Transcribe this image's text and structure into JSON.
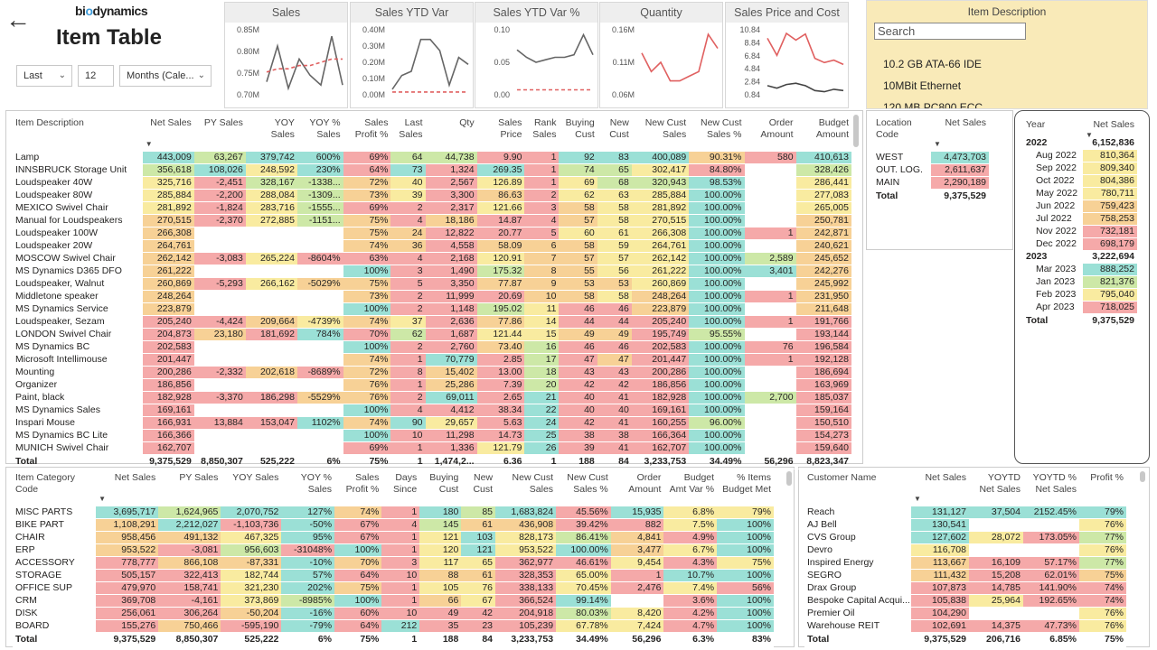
{
  "header": {
    "logo_pre": "bi",
    "logo_o": "o",
    "logo_post": "dynamics",
    "title": "Item Table",
    "filter_period": "Last",
    "filter_count": "12",
    "filter_unit": "Months (Cale..."
  },
  "kpi_cards": [
    {
      "title": "Sales",
      "yticks": [
        "0.85M",
        "0.80M",
        "0.75M",
        "0.70M"
      ]
    },
    {
      "title": "Sales YTD Var",
      "yticks": [
        "0.40M",
        "0.30M",
        "0.20M",
        "0.10M",
        "0.00M"
      ]
    },
    {
      "title": "Sales YTD Var %",
      "yticks": [
        "0.10",
        "0.05",
        "0.00"
      ]
    },
    {
      "title": "Quantity",
      "yticks": [
        "0.16M",
        "0.11M",
        "0.06M"
      ]
    },
    {
      "title": "Sales Price and Cost",
      "yticks": [
        "10.84",
        "8.84",
        "6.84",
        "4.84",
        "2.84",
        "0.84"
      ]
    }
  ],
  "item_description_slicer": {
    "title": "Item Description",
    "search_placeholder": "Search",
    "items": [
      "10.2 GB ATA-66 IDE",
      "10MBit Ethernet",
      "120 MB PC800 ECC"
    ]
  },
  "item_table": {
    "headers": [
      "Item Description",
      "Net Sales",
      "PY Sales",
      "YOY Sales",
      "YOY % Sales",
      "Sales Profit %",
      "Last Sales",
      "Qty",
      "Sales Price",
      "Rank Sales",
      "Buying Cust",
      "New Cust",
      "New Cust Sales",
      "New Cust Sales %",
      "Order Amount",
      "Budget Amount"
    ],
    "rows": [
      [
        "Lamp",
        "443,009",
        "63,267",
        "379,742",
        "600%",
        "69%",
        "64",
        "44,738",
        "9.90",
        "1",
        "92",
        "83",
        "400,089",
        "90.31%",
        "580",
        "410,613"
      ],
      [
        "INNSBRUCK Storage Unit",
        "356,618",
        "108,026",
        "248,592",
        "230%",
        "64%",
        "73",
        "1,324",
        "269.35",
        "1",
        "74",
        "65",
        "302,417",
        "84.80%",
        "",
        "328,426"
      ],
      [
        "Loudspeaker 40W",
        "325,716",
        "-2,451",
        "328,167",
        "-1338...",
        "72%",
        "40",
        "2,567",
        "126.89",
        "1",
        "69",
        "68",
        "320,943",
        "98.53%",
        "",
        "286,441"
      ],
      [
        "Loudspeaker 80W",
        "285,884",
        "-2,200",
        "288,084",
        "-1309...",
        "73%",
        "39",
        "3,300",
        "86.63",
        "2",
        "62",
        "63",
        "285,884",
        "100.00%",
        "",
        "277,083"
      ],
      [
        "MEXICO Swivel Chair",
        "281,892",
        "-1,824",
        "283,716",
        "-1555...",
        "69%",
        "2",
        "2,317",
        "121.66",
        "3",
        "58",
        "58",
        "281,892",
        "100.00%",
        "",
        "265,005"
      ],
      [
        "Manual for Loudspeakers",
        "270,515",
        "-2,370",
        "272,885",
        "-1151...",
        "75%",
        "4",
        "18,186",
        "14.87",
        "4",
        "57",
        "58",
        "270,515",
        "100.00%",
        "",
        "250,781"
      ],
      [
        "Loudspeaker 100W",
        "266,308",
        "",
        "",
        "",
        "75%",
        "24",
        "12,822",
        "20.77",
        "5",
        "60",
        "61",
        "266,308",
        "100.00%",
        "1",
        "242,871"
      ],
      [
        "Loudspeaker 20W",
        "264,761",
        "",
        "",
        "",
        "74%",
        "36",
        "4,558",
        "58.09",
        "6",
        "58",
        "59",
        "264,761",
        "100.00%",
        "",
        "240,621"
      ],
      [
        "MOSCOW Swivel Chair",
        "262,142",
        "-3,083",
        "265,224",
        "-8604%",
        "63%",
        "4",
        "2,168",
        "120.91",
        "7",
        "57",
        "57",
        "262,142",
        "100.00%",
        "2,589",
        "245,652"
      ],
      [
        "MS Dynamics D365 DFO",
        "261,222",
        "",
        "",
        "",
        "100%",
        "3",
        "1,490",
        "175.32",
        "8",
        "55",
        "56",
        "261,222",
        "100.00%",
        "3,401",
        "242,276"
      ],
      [
        "Loudspeaker, Walnut",
        "260,869",
        "-5,293",
        "266,162",
        "-5029%",
        "75%",
        "5",
        "3,350",
        "77.87",
        "9",
        "53",
        "53",
        "260,869",
        "100.00%",
        "",
        "245,992"
      ],
      [
        "Middletone speaker",
        "248,264",
        "",
        "",
        "",
        "73%",
        "2",
        "11,999",
        "20.69",
        "10",
        "58",
        "58",
        "248,264",
        "100.00%",
        "1",
        "231,950"
      ],
      [
        "MS Dynamics Service",
        "223,879",
        "",
        "",
        "",
        "100%",
        "2",
        "1,148",
        "195.02",
        "11",
        "46",
        "46",
        "223,879",
        "100.00%",
        "",
        "211,648"
      ],
      [
        "Loudspeaker, Sezam",
        "205,240",
        "-4,424",
        "209,664",
        "-4739%",
        "74%",
        "37",
        "2,636",
        "77.86",
        "14",
        "44",
        "44",
        "205,240",
        "100.00%",
        "1",
        "191,766"
      ],
      [
        "LONDON Swivel Chair",
        "204,873",
        "23,180",
        "181,692",
        "784%",
        "70%",
        "62",
        "1,687",
        "121.44",
        "15",
        "49",
        "49",
        "195,749",
        "95.55%",
        "",
        "193,144"
      ],
      [
        "MS Dynamics BC",
        "202,583",
        "",
        "",
        "",
        "100%",
        "2",
        "2,760",
        "73.40",
        "16",
        "46",
        "46",
        "202,583",
        "100.00%",
        "76",
        "196,584"
      ],
      [
        "Microsoft Intellimouse",
        "201,447",
        "",
        "",
        "",
        "74%",
        "1",
        "70,779",
        "2.85",
        "17",
        "47",
        "47",
        "201,447",
        "100.00%",
        "1",
        "192,128"
      ],
      [
        "Mounting",
        "200,286",
        "-2,332",
        "202,618",
        "-8689%",
        "72%",
        "8",
        "15,402",
        "13.00",
        "18",
        "43",
        "43",
        "200,286",
        "100.00%",
        "",
        "186,694"
      ],
      [
        "Organizer",
        "186,856",
        "",
        "",
        "",
        "76%",
        "1",
        "25,286",
        "7.39",
        "20",
        "42",
        "42",
        "186,856",
        "100.00%",
        "",
        "163,969"
      ],
      [
        "Paint, black",
        "182,928",
        "-3,370",
        "186,298",
        "-5529%",
        "76%",
        "2",
        "69,011",
        "2.65",
        "21",
        "40",
        "41",
        "182,928",
        "100.00%",
        "2,700",
        "185,037"
      ],
      [
        "MS Dynamics Sales",
        "169,161",
        "",
        "",
        "",
        "100%",
        "4",
        "4,412",
        "38.34",
        "22",
        "40",
        "40",
        "169,161",
        "100.00%",
        "",
        "159,164"
      ],
      [
        "Inspari Mouse",
        "166,931",
        "13,884",
        "153,047",
        "1102%",
        "74%",
        "90",
        "29,657",
        "5.63",
        "24",
        "42",
        "41",
        "160,255",
        "96.00%",
        "",
        "150,510"
      ],
      [
        "MS Dynamics BC Lite",
        "166,366",
        "",
        "",
        "",
        "100%",
        "10",
        "11,298",
        "14.73",
        "25",
        "38",
        "38",
        "166,364",
        "100.00%",
        "",
        "154,273"
      ],
      [
        "MUNICH Swivel Chair",
        "162,707",
        "",
        "",
        "",
        "69%",
        "1",
        "1,336",
        "121.79",
        "26",
        "39",
        "41",
        "162,707",
        "100.00%",
        "",
        "159,640"
      ]
    ],
    "total": [
      "Total",
      "9,375,529",
      "8,850,307",
      "525,222",
      "6%",
      "75%",
      "1",
      "1,474,2...",
      "6.36",
      "1",
      "188",
      "84",
      "3,233,753",
      "34.49%",
      "56,296",
      "8,823,347"
    ]
  },
  "location_table": {
    "headers": [
      "Location Code",
      "Net Sales"
    ],
    "rows": [
      [
        "WEST",
        "4,473,703"
      ],
      [
        "OUT. LOG.",
        "2,611,637"
      ],
      [
        "MAIN",
        "2,290,189"
      ]
    ],
    "total": [
      "Total",
      "9,375,529"
    ]
  },
  "year_table": {
    "headers": [
      "Year",
      "Net Sales"
    ],
    "rows": [
      {
        "label": "2022",
        "value": "6,152,836",
        "group": true
      },
      {
        "label": "Aug 2022",
        "value": "810,364"
      },
      {
        "label": "Sep 2022",
        "value": "809,340"
      },
      {
        "label": "Oct 2022",
        "value": "804,386"
      },
      {
        "label": "May 2022",
        "value": "780,711"
      },
      {
        "label": "Jun 2022",
        "value": "759,423"
      },
      {
        "label": "Jul 2022",
        "value": "758,253"
      },
      {
        "label": "Nov 2022",
        "value": "732,181"
      },
      {
        "label": "Dec 2022",
        "value": "698,179"
      },
      {
        "label": "2023",
        "value": "3,222,694",
        "group": true
      },
      {
        "label": "Mar 2023",
        "value": "888,252"
      },
      {
        "label": "Jan 2023",
        "value": "821,376"
      },
      {
        "label": "Feb 2023",
        "value": "795,040"
      },
      {
        "label": "Apr 2023",
        "value": "718,025"
      }
    ],
    "total": [
      "Total",
      "9,375,529"
    ]
  },
  "category_table": {
    "headers": [
      "Item Category Code",
      "Net Sales",
      "PY Sales",
      "YOY Sales",
      "YOY % Sales",
      "Sales Profit %",
      "Days Since",
      "Buying Cust",
      "New Cust",
      "New Cust Sales",
      "New Cust Sales %",
      "Order Amount",
      "Budget Amt Var %",
      "% Items Budget Met"
    ],
    "rows": [
      [
        "MISC PARTS",
        "3,695,717",
        "1,624,965",
        "2,070,752",
        "127%",
        "74%",
        "1",
        "180",
        "85",
        "1,683,824",
        "45.56%",
        "15,935",
        "6.8%",
        "79%"
      ],
      [
        "BIKE PART",
        "1,108,291",
        "2,212,027",
        "-1,103,736",
        "-50%",
        "67%",
        "4",
        "145",
        "61",
        "436,908",
        "39.42%",
        "882",
        "7.5%",
        "100%"
      ],
      [
        "CHAIR",
        "958,456",
        "491,132",
        "467,325",
        "95%",
        "67%",
        "1",
        "121",
        "103",
        "828,173",
        "86.41%",
        "4,841",
        "4.9%",
        "100%"
      ],
      [
        "ERP",
        "953,522",
        "-3,081",
        "956,603",
        "-31048%",
        "100%",
        "1",
        "120",
        "121",
        "953,522",
        "100.00%",
        "3,477",
        "6.7%",
        "100%"
      ],
      [
        "ACCESSORY",
        "778,777",
        "866,108",
        "-87,331",
        "-10%",
        "70%",
        "3",
        "117",
        "65",
        "362,977",
        "46.61%",
        "9,454",
        "4.3%",
        "75%"
      ],
      [
        "STORAGE",
        "505,157",
        "322,413",
        "182,744",
        "57%",
        "64%",
        "10",
        "88",
        "61",
        "328,353",
        "65.00%",
        "1",
        "10.7%",
        "100%"
      ],
      [
        "OFFICE SUP",
        "479,970",
        "158,741",
        "321,230",
        "202%",
        "75%",
        "1",
        "105",
        "76",
        "338,133",
        "70.45%",
        "2,476",
        "7.4%",
        "56%"
      ],
      [
        "CRM",
        "369,708",
        "-4,161",
        "373,869",
        "-8985%",
        "100%",
        "1",
        "66",
        "67",
        "366,524",
        "99.14%",
        "",
        "3.6%",
        "100%"
      ],
      [
        "DISK",
        "256,061",
        "306,264",
        "-50,204",
        "-16%",
        "60%",
        "10",
        "49",
        "42",
        "204,918",
        "80.03%",
        "8,420",
        "4.2%",
        "100%"
      ],
      [
        "BOARD",
        "155,276",
        "750,466",
        "-595,190",
        "-79%",
        "64%",
        "212",
        "35",
        "23",
        "105,239",
        "67.78%",
        "7,424",
        "4.7%",
        "100%"
      ]
    ],
    "total": [
      "Total",
      "9,375,529",
      "8,850,307",
      "525,222",
      "6%",
      "75%",
      "1",
      "188",
      "84",
      "3,233,753",
      "34.49%",
      "56,296",
      "6.3%",
      "83%"
    ]
  },
  "customer_table": {
    "headers": [
      "Customer Name",
      "Net Sales",
      "YOYTD Net Sales",
      "YOYTD % Net Sales",
      "Profit %"
    ],
    "rows": [
      [
        "Reach",
        "131,127",
        "37,504",
        "2152.45%",
        "79%"
      ],
      [
        "AJ Bell",
        "130,541",
        "",
        "",
        "76%"
      ],
      [
        "CVS Group",
        "127,602",
        "28,072",
        "173.05%",
        "77%"
      ],
      [
        "Devro",
        "116,708",
        "",
        "",
        "76%"
      ],
      [
        "Inspired Energy",
        "113,667",
        "16,109",
        "57.17%",
        "77%"
      ],
      [
        "SEGRO",
        "111,432",
        "15,208",
        "62.01%",
        "75%"
      ],
      [
        "Drax Group",
        "107,873",
        "14,785",
        "141.90%",
        "74%"
      ],
      [
        "Bespoke Capital Acqui...",
        "105,838",
        "25,964",
        "192.65%",
        "74%"
      ],
      [
        "Premier Oil",
        "104,290",
        "",
        "",
        "76%"
      ],
      [
        "Warehouse REIT",
        "102,691",
        "14,375",
        "47.73%",
        "76%"
      ]
    ],
    "total": [
      "Total",
      "9,375,529",
      "206,716",
      "6.85%",
      "75%"
    ]
  },
  "colors": {
    "green": "#cde8a7",
    "teal": "#9be0d6",
    "yellow": "#f9eba0",
    "orange": "#f7d196",
    "red": "#f5a9a9",
    "white": "#ffffff"
  }
}
